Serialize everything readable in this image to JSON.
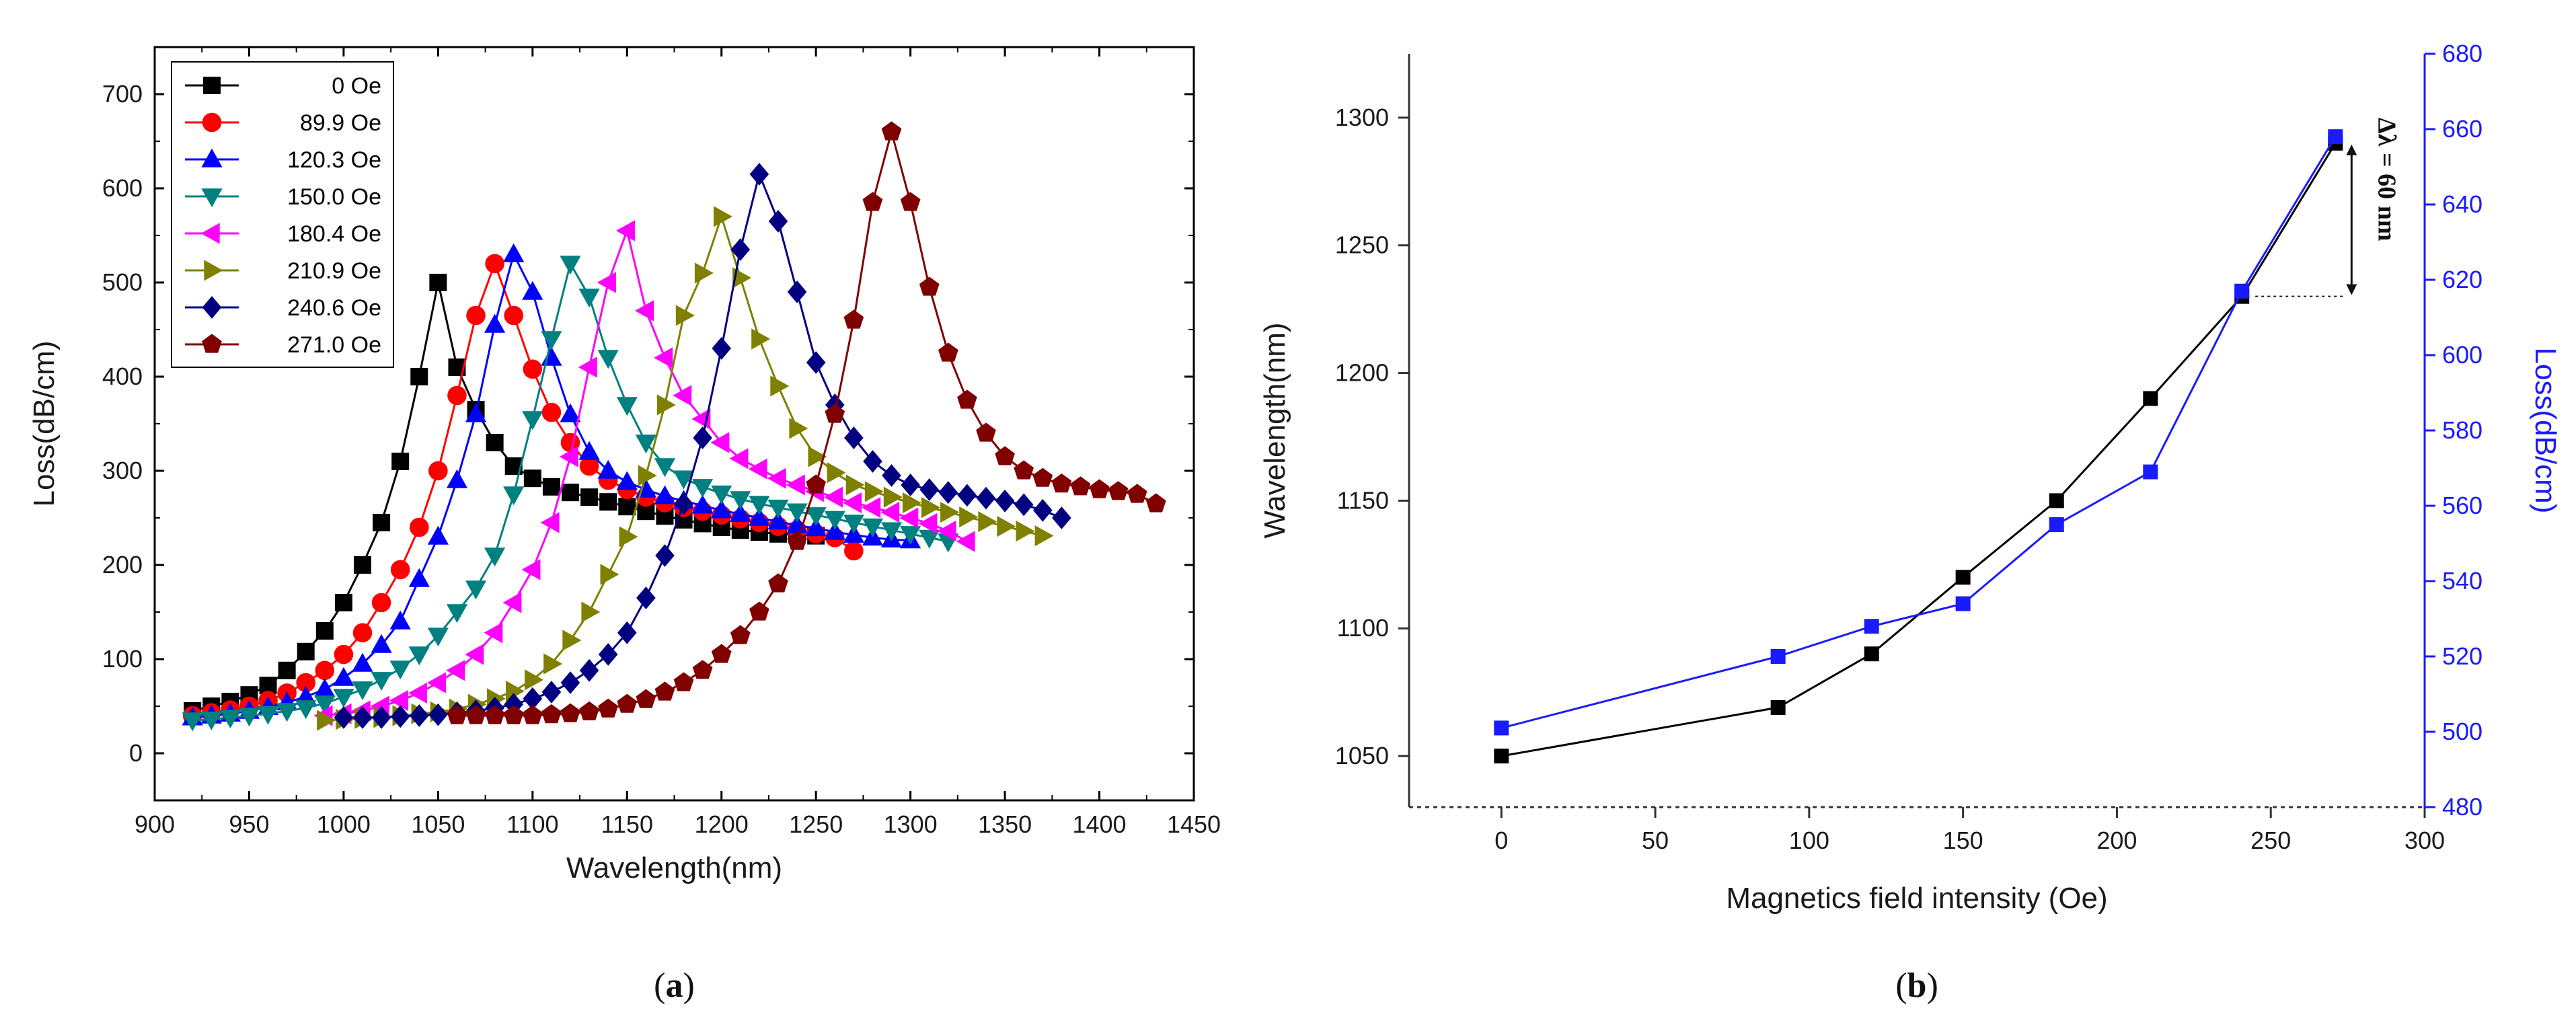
{
  "chart_data": [
    {
      "type": "line",
      "panel": "(a)",
      "caption_open": "(",
      "caption_letter": "a",
      "caption_close": ")",
      "xlabel": "Wavelength(nm)",
      "ylabel": "Loss(dB/cm)",
      "xlim": [
        900,
        1450
      ],
      "ylim": [
        -50,
        750
      ],
      "xticks": [
        900,
        950,
        1000,
        1050,
        1100,
        1150,
        1200,
        1250,
        1300,
        1350,
        1400,
        1450
      ],
      "yticks": [
        0,
        100,
        200,
        300,
        400,
        500,
        600,
        700
      ],
      "legend_position": "top-left",
      "series": [
        {
          "name": "0  Oe",
          "color": "#000000",
          "marker": "square",
          "x": [
            920,
            930,
            940,
            950,
            960,
            970,
            980,
            990,
            1000,
            1010,
            1020,
            1030,
            1040,
            1050,
            1060,
            1070,
            1080,
            1090,
            1100,
            1110,
            1120,
            1130,
            1140,
            1150,
            1160,
            1170,
            1180,
            1190,
            1200,
            1210,
            1220,
            1230,
            1240,
            1250
          ],
          "y": [
            45,
            50,
            55,
            62,
            72,
            88,
            108,
            130,
            160,
            200,
            245,
            310,
            400,
            500,
            410,
            365,
            330,
            305,
            292,
            283,
            277,
            272,
            267,
            262,
            257,
            252,
            248,
            244,
            240,
            237,
            235,
            233,
            232,
            231
          ]
        },
        {
          "name": "89.9  Oe",
          "color": "#ff0000",
          "marker": "circle",
          "x": [
            920,
            930,
            940,
            950,
            960,
            970,
            980,
            990,
            1000,
            1010,
            1020,
            1030,
            1040,
            1050,
            1060,
            1070,
            1080,
            1090,
            1100,
            1110,
            1120,
            1130,
            1140,
            1150,
            1160,
            1170,
            1180,
            1190,
            1200,
            1210,
            1220,
            1230,
            1240,
            1250,
            1260,
            1270
          ],
          "y": [
            40,
            43,
            46,
            50,
            56,
            64,
            75,
            88,
            105,
            128,
            160,
            195,
            240,
            300,
            380,
            465,
            520,
            465,
            408,
            362,
            330,
            305,
            290,
            280,
            272,
            266,
            261,
            257,
            253,
            249,
            245,
            241,
            237,
            233,
            229,
            215
          ]
        },
        {
          "name": "120.3 Oe",
          "color": "#0000ff",
          "marker": "triangle-up",
          "x": [
            920,
            930,
            940,
            950,
            960,
            970,
            980,
            990,
            1000,
            1010,
            1020,
            1030,
            1040,
            1050,
            1060,
            1070,
            1080,
            1090,
            1100,
            1110,
            1120,
            1130,
            1140,
            1150,
            1160,
            1170,
            1180,
            1190,
            1200,
            1210,
            1220,
            1230,
            1240,
            1250,
            1260,
            1270,
            1280,
            1290,
            1300
          ],
          "y": [
            38,
            40,
            42,
            45,
            49,
            54,
            60,
            68,
            80,
            95,
            115,
            140,
            185,
            230,
            290,
            360,
            455,
            530,
            490,
            420,
            360,
            320,
            300,
            288,
            280,
            273,
            268,
            263,
            258,
            254,
            250,
            246,
            242,
            239,
            235,
            232,
            229,
            227,
            226
          ]
        },
        {
          "name": "150.0 Oe",
          "color": "#008080",
          "marker": "triangle-down",
          "x": [
            920,
            930,
            940,
            950,
            960,
            970,
            980,
            990,
            1000,
            1010,
            1020,
            1030,
            1040,
            1050,
            1060,
            1070,
            1080,
            1090,
            1100,
            1110,
            1120,
            1130,
            1140,
            1150,
            1160,
            1170,
            1180,
            1190,
            1200,
            1210,
            1220,
            1230,
            1240,
            1250,
            1260,
            1270,
            1280,
            1290,
            1300,
            1310,
            1320
          ],
          "y": [
            35,
            36,
            38,
            40,
            42,
            45,
            48,
            53,
            60,
            68,
            78,
            90,
            105,
            125,
            150,
            175,
            210,
            275,
            355,
            440,
            520,
            485,
            420,
            370,
            330,
            305,
            292,
            283,
            276,
            270,
            265,
            261,
            257,
            253,
            249,
            245,
            241,
            237,
            233,
            229,
            225
          ]
        },
        {
          "name": "180.4 Oe",
          "color": "#ff00ff",
          "marker": "triangle-left",
          "x": [
            990,
            1000,
            1010,
            1020,
            1030,
            1040,
            1050,
            1060,
            1070,
            1080,
            1090,
            1100,
            1110,
            1120,
            1130,
            1140,
            1150,
            1160,
            1170,
            1180,
            1190,
            1200,
            1210,
            1220,
            1230,
            1240,
            1250,
            1260,
            1270,
            1280,
            1290,
            1300,
            1310,
            1320,
            1330
          ],
          "y": [
            40,
            42,
            45,
            50,
            56,
            64,
            75,
            88,
            105,
            128,
            160,
            195,
            245,
            315,
            410,
            500,
            555,
            470,
            420,
            380,
            355,
            330,
            313,
            302,
            292,
            285,
            278,
            272,
            266,
            261,
            256,
            250,
            244,
            236,
            225
          ]
        },
        {
          "name": "210.9 Oe",
          "color": "#808000",
          "marker": "triangle-right",
          "x": [
            990,
            1000,
            1010,
            1020,
            1030,
            1040,
            1050,
            1060,
            1070,
            1080,
            1090,
            1100,
            1110,
            1120,
            1130,
            1140,
            1150,
            1160,
            1170,
            1180,
            1190,
            1200,
            1210,
            1220,
            1230,
            1240,
            1250,
            1260,
            1270,
            1280,
            1290,
            1300,
            1310,
            1320,
            1330,
            1340,
            1350,
            1360,
            1370
          ],
          "y": [
            35,
            36,
            37,
            38,
            40,
            42,
            44,
            47,
            52,
            58,
            66,
            78,
            95,
            120,
            150,
            190,
            230,
            295,
            370,
            465,
            510,
            570,
            505,
            440,
            390,
            345,
            315,
            298,
            285,
            278,
            272,
            266,
            261,
            256,
            251,
            246,
            241,
            236,
            231
          ]
        },
        {
          "name": "240.6 Oe",
          "color": "#000080",
          "marker": "diamond",
          "x": [
            1000,
            1010,
            1020,
            1030,
            1040,
            1050,
            1060,
            1070,
            1080,
            1090,
            1100,
            1110,
            1120,
            1130,
            1140,
            1150,
            1160,
            1170,
            1180,
            1190,
            1200,
            1210,
            1220,
            1230,
            1240,
            1250,
            1260,
            1270,
            1280,
            1290,
            1300,
            1310,
            1320,
            1330,
            1340,
            1350,
            1360,
            1370,
            1380
          ],
          "y": [
            38,
            38,
            38,
            39,
            40,
            41,
            43,
            45,
            48,
            52,
            58,
            65,
            75,
            88,
            105,
            128,
            165,
            210,
            265,
            335,
            430,
            535,
            615,
            565,
            490,
            415,
            370,
            335,
            310,
            295,
            285,
            280,
            277,
            274,
            271,
            268,
            264,
            258,
            250
          ]
        },
        {
          "name": "271.0 Oe",
          "color": "#800000",
          "marker": "pentagon",
          "x": [
            1060,
            1070,
            1080,
            1090,
            1100,
            1110,
            1120,
            1130,
            1140,
            1150,
            1160,
            1170,
            1180,
            1190,
            1200,
            1210,
            1220,
            1230,
            1240,
            1250,
            1260,
            1270,
            1280,
            1290,
            1300,
            1310,
            1320,
            1330,
            1340,
            1350,
            1360,
            1370,
            1380,
            1390,
            1400,
            1410,
            1420,
            1430
          ],
          "y": [
            40,
            40,
            40,
            40,
            40,
            41,
            42,
            44,
            47,
            52,
            57,
            65,
            75,
            88,
            105,
            125,
            150,
            180,
            225,
            285,
            360,
            460,
            585,
            660,
            585,
            495,
            425,
            375,
            340,
            315,
            300,
            292,
            286,
            283,
            280,
            278,
            275,
            265
          ]
        }
      ]
    },
    {
      "type": "line",
      "panel": "(b)",
      "caption_open": "(",
      "caption_letter": "b",
      "caption_close": ")",
      "xlabel": "Magnetics field intensity (Oe)",
      "ylabel": "Wavelength(nm)",
      "y2label": "Loss(dB/cm)",
      "xlim": [
        -30,
        300
      ],
      "ylim": [
        1030,
        1325
      ],
      "y2lim": [
        480,
        680
      ],
      "xticks": [
        0,
        50,
        100,
        150,
        200,
        250,
        300
      ],
      "yticks": [
        1050,
        1100,
        1150,
        1200,
        1250,
        1300
      ],
      "y2ticks": [
        480,
        500,
        520,
        540,
        560,
        580,
        600,
        620,
        640,
        660,
        680
      ],
      "annotation": "Δλ = 60 nm",
      "series": [
        {
          "name": "Wavelength",
          "axis": "left",
          "color": "#000000",
          "marker": "square",
          "x": [
            0,
            89.9,
            120.3,
            150.0,
            180.4,
            210.9,
            240.6,
            271.0
          ],
          "y": [
            1050,
            1069,
            1090,
            1120,
            1150,
            1190,
            1230,
            1290
          ]
        },
        {
          "name": "Loss",
          "axis": "right",
          "color": "#1a1aff",
          "marker": "square",
          "x": [
            0,
            89.9,
            120.3,
            150.0,
            180.4,
            210.9,
            240.6,
            271.0
          ],
          "y": [
            501,
            520,
            528,
            534,
            555,
            569,
            617,
            658
          ]
        }
      ]
    }
  ]
}
